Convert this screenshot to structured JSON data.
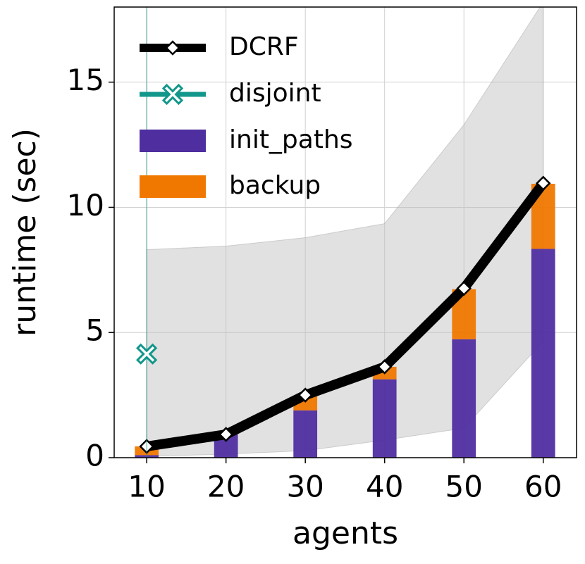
{
  "chart_data": {
    "type": "stacked-bar-line",
    "xlabel": "agents",
    "ylabel": "runtime (sec)",
    "x": [
      10,
      20,
      30,
      40,
      50,
      60
    ],
    "xlim": [
      5.9,
      64.2
    ],
    "ylim": [
      0,
      18
    ],
    "xticks": [
      10,
      20,
      30,
      40,
      50,
      60
    ],
    "yticks": [
      0,
      5,
      10,
      15
    ],
    "grid": true,
    "legend": "upper left",
    "series": [
      {
        "name": "DCRF",
        "kind": "line",
        "color": "#000000",
        "values": [
          0.45,
          0.93,
          2.5,
          3.63,
          6.76,
          10.96
        ]
      },
      {
        "name": "disjoint",
        "kind": "line",
        "color": "#12978b",
        "values": [
          4.14,
          null,
          null,
          null,
          null,
          null
        ]
      },
      {
        "name": "init_paths",
        "kind": "bar",
        "color": "#4f2ea0",
        "values": [
          0.1,
          0.93,
          1.89,
          3.13,
          4.73,
          8.34
        ]
      },
      {
        "name": "backup",
        "kind": "bar",
        "color": "#f07800",
        "values": [
          0.35,
          0,
          0.6,
          0.5,
          2.0,
          2.6
        ]
      }
    ],
    "band_color": "#bdbdbd",
    "band_upper": [
      8.31,
      8.45,
      8.79,
      9.35,
      13.3,
      18.2
    ],
    "band_lower": [
      0.05,
      0.14,
      0.28,
      0.7,
      1.18,
      4.65
    ]
  }
}
